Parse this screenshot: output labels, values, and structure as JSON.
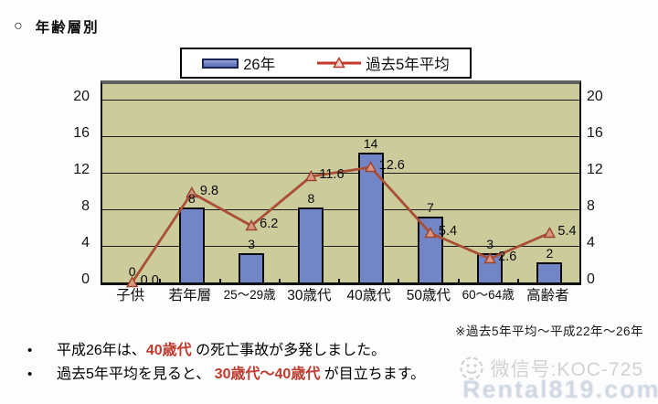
{
  "header": {
    "marker": "○",
    "title": "年齢層別"
  },
  "legend": {
    "series1": "26年",
    "series2": "過去5年平均"
  },
  "chart_data": {
    "type": "bar",
    "subtype": "bar+line combo",
    "categories": [
      "子供",
      "若年層",
      "25～29歳",
      "30歳代",
      "40歳代",
      "50歳代",
      "60～64歳",
      "高齢者"
    ],
    "series": [
      {
        "name": "26年",
        "type": "bar",
        "color": "#7285C6",
        "values": [
          0,
          8,
          3,
          8,
          14,
          7,
          3,
          2
        ]
      },
      {
        "name": "過去5年平均",
        "type": "line",
        "color": "#AA4E36",
        "values": [
          0.0,
          9.8,
          6.2,
          11.6,
          12.6,
          5.4,
          2.6,
          5.4
        ]
      }
    ],
    "bar_labels": [
      "0",
      "8",
      "3",
      "8",
      "14",
      "7",
      "3",
      "2"
    ],
    "line_labels": [
      "0.0",
      "9.8",
      "6.2",
      "11.6",
      "12.6",
      "5.4",
      "2.6",
      "5.4"
    ],
    "title": "年齢層別",
    "xlabel": "",
    "ylabel": "",
    "y_ticks": [
      0,
      4,
      8,
      12,
      16,
      20
    ],
    "ylim": [
      0,
      21.7
    ],
    "grid": true,
    "legend_position": "top",
    "plot_bg": "#CBCB9B",
    "marker_fill": "#D9977F"
  },
  "footnote": "※過去5年平均～平成22年～26年",
  "bullets": [
    {
      "segments": [
        {
          "text": "平成26年は、",
          "color": "#000000",
          "bold": false
        },
        {
          "text": "40歳代",
          "color": "#BE3B2E",
          "bold": true
        },
        {
          "text": " の死亡事故が多発しました。",
          "color": "#000000",
          "bold": false
        }
      ]
    },
    {
      "segments": [
        {
          "text": "過去5年平均を見ると、 ",
          "color": "#000000",
          "bold": false
        },
        {
          "text": "30歳代～40歳代",
          "color": "#BE3B2E",
          "bold": true
        },
        {
          "text": " が目立ちます。",
          "color": "#000000",
          "bold": false
        }
      ]
    }
  ],
  "watermark": {
    "wechat_label": "微信号:KOC-725",
    "site": "Rental819.com"
  }
}
